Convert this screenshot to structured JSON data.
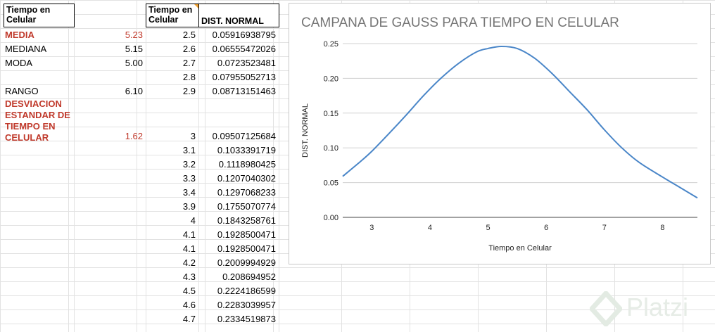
{
  "headers": {
    "col_a": "Tiempo en Celular",
    "col_c": "Tiempo en Celular",
    "col_d": "DIST. NORMAL"
  },
  "stats": [
    {
      "label": "MEDIA",
      "value": "5.23",
      "highlight": true
    },
    {
      "label": "MEDIANA",
      "value": "5.15",
      "highlight": false
    },
    {
      "label": "MODA",
      "value": "5.00",
      "highlight": false
    },
    {
      "label": "RANGO",
      "value": "6.10",
      "highlight": false
    },
    {
      "label": "DESVIACION ESTANDAR DE TIEMPO EN CELULAR",
      "value": "1.62",
      "highlight": true
    }
  ],
  "table_rows": [
    {
      "t": "2.5",
      "d": "0.05916938795"
    },
    {
      "t": "2.6",
      "d": "0.06555472026"
    },
    {
      "t": "2.7",
      "d": "0.0723523481"
    },
    {
      "t": "2.8",
      "d": "0.07955052713"
    },
    {
      "t": "2.9",
      "d": "0.08713151463"
    },
    {
      "t": "3",
      "d": "0.09507125684"
    },
    {
      "t": "3.1",
      "d": "0.1033391719"
    },
    {
      "t": "3.2",
      "d": "0.1118980425"
    },
    {
      "t": "3.3",
      "d": "0.1207040302"
    },
    {
      "t": "3.4",
      "d": "0.1297068233"
    },
    {
      "t": "3.9",
      "d": "0.1755070774"
    },
    {
      "t": "4",
      "d": "0.1843258761"
    },
    {
      "t": "4.1",
      "d": "0.1928500471"
    },
    {
      "t": "4.1",
      "d": "0.1928500471"
    },
    {
      "t": "4.2",
      "d": "0.2009994929"
    },
    {
      "t": "4.3",
      "d": "0.208694952"
    },
    {
      "t": "4.5",
      "d": "0.2224186599"
    },
    {
      "t": "4.6",
      "d": "0.2283039957"
    },
    {
      "t": "4.7",
      "d": "0.2334519873"
    }
  ],
  "chart_data": {
    "type": "line",
    "title": "CAMPANA DE GAUSS PARA TIEMPO EN CELULAR",
    "xlabel": "Tiempo en Celular",
    "ylabel": "DIST. NORMAL",
    "xlim": [
      2.5,
      8.6
    ],
    "ylim": [
      0,
      0.25
    ],
    "xticks": [
      3,
      4,
      5,
      6,
      7,
      8
    ],
    "yticks": [
      "0.00",
      "0.05",
      "0.10",
      "0.15",
      "0.20",
      "0.25"
    ],
    "grid": true,
    "legend": "none",
    "color": "#4a86c8",
    "series": [
      {
        "x": [
          2.5,
          2.8,
          3.0,
          3.3,
          3.6,
          3.9,
          4.2,
          4.5,
          4.8,
          5.0,
          5.23,
          5.5,
          5.8,
          6.1,
          6.4,
          6.7,
          7.0,
          7.3,
          7.6,
          8.0,
          8.3,
          8.6
        ],
        "y": [
          0.059,
          0.08,
          0.095,
          0.121,
          0.148,
          0.176,
          0.201,
          0.222,
          0.238,
          0.243,
          0.246,
          0.243,
          0.229,
          0.207,
          0.181,
          0.155,
          0.126,
          0.1,
          0.079,
          0.058,
          0.043,
          0.028
        ]
      }
    ]
  },
  "watermark": {
    "text": "Platzi",
    "color": "#e8eee8"
  }
}
